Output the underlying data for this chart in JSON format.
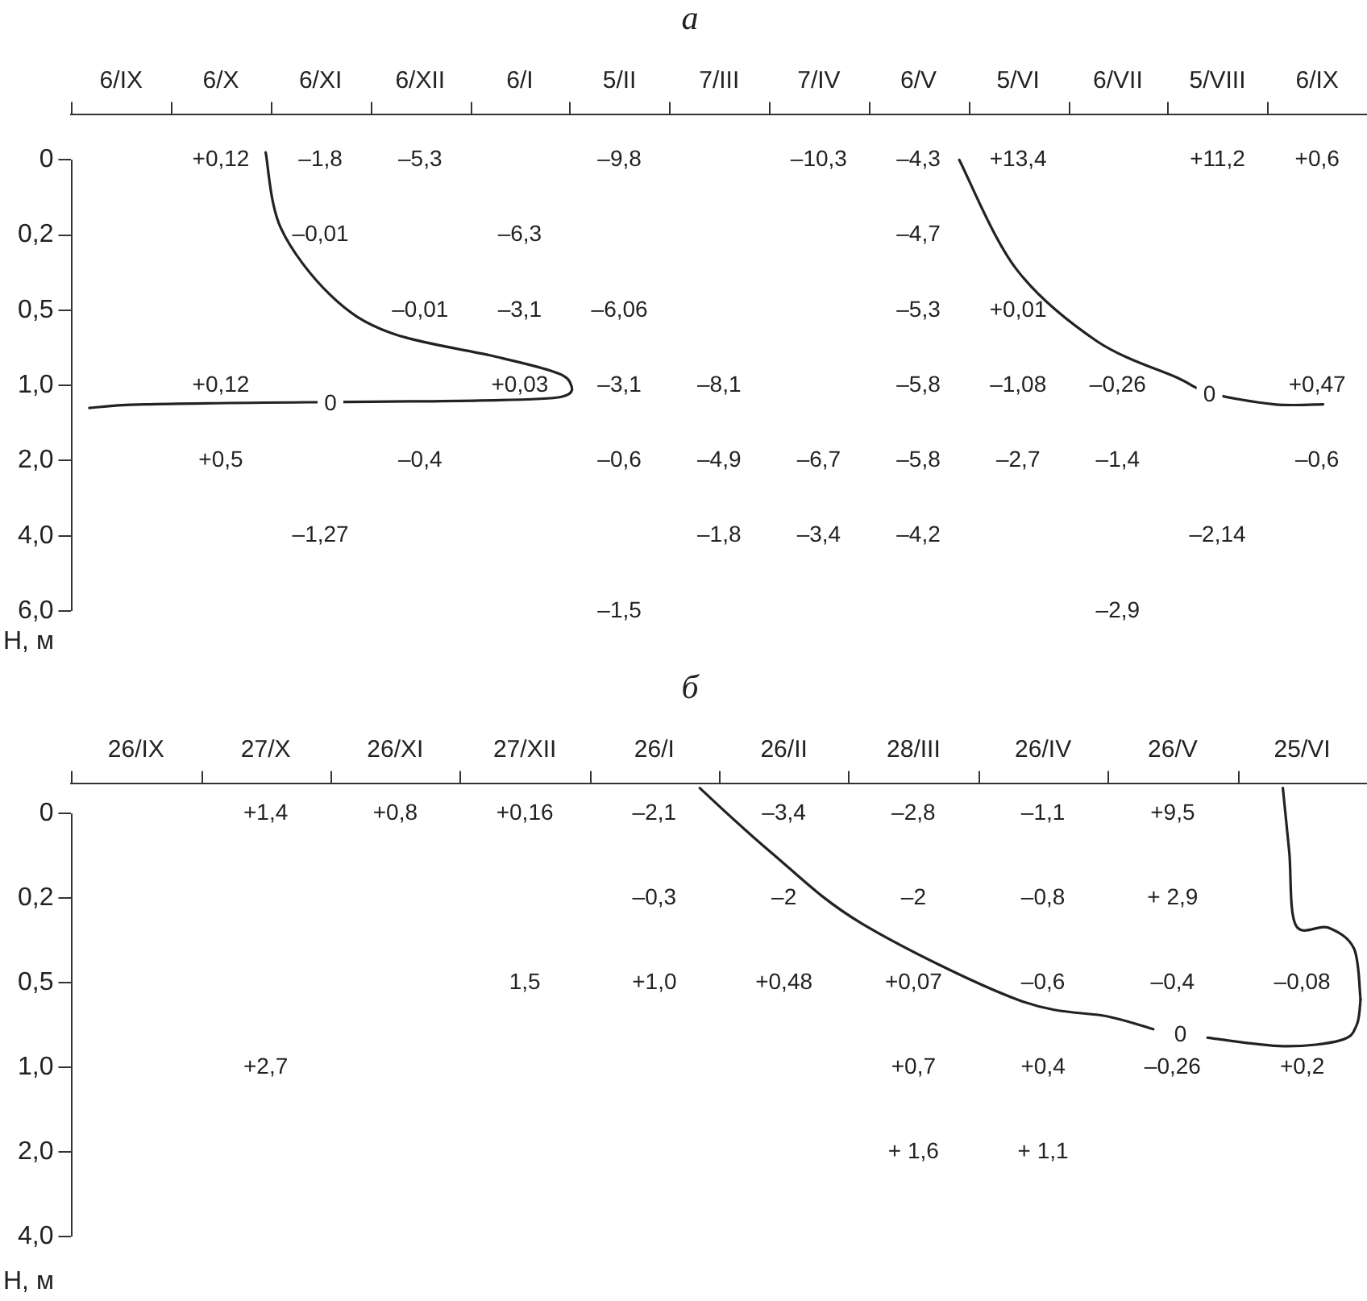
{
  "chart_data": [
    {
      "type": "heatmap",
      "title": "а",
      "ylabel": "H, м",
      "categories": [
        "6/IX",
        "6/X",
        "6/XI",
        "6/XII",
        "6/I",
        "5/II",
        "7/III",
        "7/IV",
        "6/V",
        "5/VI",
        "6/VII",
        "5/VIII",
        "6/IX"
      ],
      "y_categories": [
        "0",
        "0,2",
        "0,5",
        "1,0",
        "2,0",
        "4,0",
        "6,0"
      ],
      "cells": [
        [
          null,
          0.12,
          -1.8,
          -5.3,
          null,
          -9.8,
          null,
          -10.3,
          -4.3,
          13.4,
          null,
          11.2,
          0.6
        ],
        [
          null,
          null,
          -0.01,
          null,
          -6.3,
          null,
          null,
          null,
          -4.7,
          null,
          null,
          null,
          null
        ],
        [
          null,
          null,
          null,
          -0.01,
          -3.1,
          -6.06,
          null,
          null,
          -5.3,
          0.01,
          null,
          null,
          null
        ],
        [
          null,
          0.12,
          null,
          null,
          0.03,
          -3.1,
          -8.1,
          null,
          -5.8,
          -1.08,
          -0.26,
          null,
          0.47
        ],
        [
          null,
          0.5,
          null,
          -0.4,
          null,
          -0.6,
          -4.9,
          -6.7,
          -5.8,
          -2.7,
          -1.4,
          null,
          -0.6
        ],
        [
          null,
          null,
          -1.27,
          null,
          null,
          null,
          -1.8,
          -3.4,
          -4.2,
          null,
          null,
          -2.14,
          null
        ],
        [
          null,
          null,
          null,
          null,
          null,
          -1.5,
          null,
          null,
          null,
          null,
          -2.9,
          null,
          null
        ]
      ],
      "cell_labels": [
        [
          null,
          "+0,12",
          "–1,8",
          "–5,3",
          null,
          "–9,8",
          null,
          "–10,3",
          "–4,3",
          "+13,4",
          null,
          "+11,2",
          "+0,6"
        ],
        [
          null,
          null,
          "–0,01",
          null,
          "–6,3",
          null,
          null,
          null,
          "–4,7",
          null,
          null,
          null,
          null
        ],
        [
          null,
          null,
          null,
          "–0,01",
          "–3,1",
          "–6,06",
          null,
          null,
          "–5,3",
          "+0,01",
          null,
          null,
          null
        ],
        [
          null,
          "+0,12",
          null,
          null,
          "+0,03",
          "–3,1",
          "–8,1",
          null,
          "–5,8",
          "–1,08",
          "–0,26",
          null,
          "+0,47"
        ],
        [
          null,
          "+0,5",
          null,
          "–0,4",
          null,
          "–0,6",
          "–4,9",
          "–6,7",
          "–5,8",
          "–2,7",
          "–1,4",
          null,
          "–0,6"
        ],
        [
          null,
          null,
          "–1,27",
          null,
          null,
          null,
          "–1,8",
          "–3,4",
          "–4,2",
          null,
          null,
          "–2,14",
          null
        ],
        [
          null,
          null,
          null,
          null,
          null,
          "–1,5",
          null,
          null,
          null,
          null,
          "–2,9",
          null,
          null
        ]
      ],
      "annotations": [
        "0",
        "0"
      ]
    },
    {
      "type": "heatmap",
      "title": "б",
      "ylabel": "H, м",
      "categories": [
        "26/IX",
        "27/X",
        "26/XI",
        "27/XII",
        "26/I",
        "26/II",
        "28/III",
        "26/IV",
        "26/V",
        "25/VI"
      ],
      "y_categories": [
        "0",
        "0,2",
        "0,5",
        "1,0",
        "2,0",
        "4,0"
      ],
      "cells": [
        [
          null,
          1.4,
          0.8,
          0.16,
          -2.1,
          -3.4,
          -2.8,
          -1.1,
          9.5,
          null
        ],
        [
          null,
          null,
          null,
          null,
          -0.3,
          -2,
          -2,
          -0.8,
          2.9,
          null
        ],
        [
          null,
          null,
          null,
          1.5,
          1.0,
          0.48,
          0.07,
          -0.6,
          -0.4,
          -0.08
        ],
        [
          null,
          2.7,
          null,
          null,
          null,
          null,
          0.7,
          0.4,
          -0.26,
          0.2
        ],
        [
          null,
          null,
          null,
          null,
          null,
          null,
          1.6,
          1.1,
          null,
          null
        ],
        [
          null,
          null,
          null,
          null,
          null,
          null,
          null,
          null,
          null,
          null
        ]
      ],
      "cell_labels": [
        [
          null,
          "+1,4",
          "+0,8",
          "+0,16",
          "–2,1",
          "–3,4",
          "–2,8",
          "–1,1",
          "+9,5",
          null
        ],
        [
          null,
          null,
          null,
          null,
          "–0,3",
          "–2",
          "–2",
          "–0,8",
          "+ 2,9",
          null
        ],
        [
          null,
          null,
          null,
          "1,5",
          "+1,0",
          "+0,48",
          "+0,07",
          "–0,6",
          "–0,4",
          "–0,08"
        ],
        [
          null,
          "+2,7",
          null,
          null,
          null,
          null,
          "+0,7",
          "+0,4",
          "–0,26",
          "+0,2"
        ],
        [
          null,
          null,
          null,
          null,
          null,
          null,
          "+ 1,6",
          "+ 1,1",
          null,
          null
        ],
        [
          null,
          null,
          null,
          null,
          null,
          null,
          null,
          null,
          null,
          null
        ]
      ],
      "annotations": [
        "0"
      ]
    }
  ]
}
